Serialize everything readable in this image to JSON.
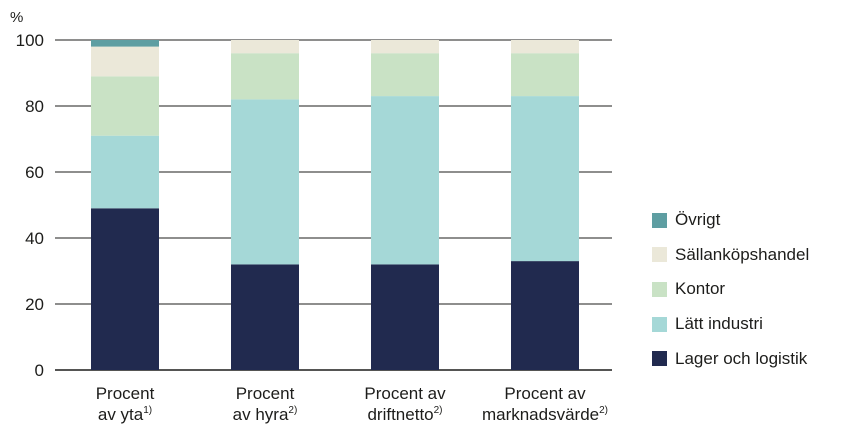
{
  "chart_data": {
    "type": "bar",
    "stacked": true,
    "ylabel": "%",
    "ylim": [
      0,
      100
    ],
    "yticks": [
      0,
      20,
      40,
      60,
      80,
      100
    ],
    "grid": true,
    "legend_position": "right",
    "categories": [
      {
        "lines": [
          "Procent",
          "av yta"
        ],
        "sup": "1)"
      },
      {
        "lines": [
          "Procent",
          "av hyra"
        ],
        "sup": "2)"
      },
      {
        "lines": [
          "Procent av",
          "driftnetto"
        ],
        "sup": "2)"
      },
      {
        "lines": [
          "Procent av",
          "marknadsvärde"
        ],
        "sup": "2)"
      }
    ],
    "series": [
      {
        "name": "Lager och logistik",
        "color": "#212a4f",
        "values": [
          49,
          32,
          32,
          33
        ]
      },
      {
        "name": "Lätt industri",
        "color": "#a5d8d7",
        "values": [
          22,
          50,
          51,
          50
        ]
      },
      {
        "name": "Kontor",
        "color": "#c9e2c5",
        "values": [
          18,
          14,
          13,
          13
        ]
      },
      {
        "name": "Sällanköpshandel",
        "color": "#ebe8d9",
        "values": [
          9,
          4,
          4,
          4
        ]
      },
      {
        "name": "Övrigt",
        "color": "#5e9ea2",
        "values": [
          2,
          0,
          0,
          0
        ]
      }
    ]
  },
  "legend": {
    "order": [
      "Övrigt",
      "Sällanköpshandel",
      "Kontor",
      "Lätt industri",
      "Lager och logistik"
    ]
  }
}
